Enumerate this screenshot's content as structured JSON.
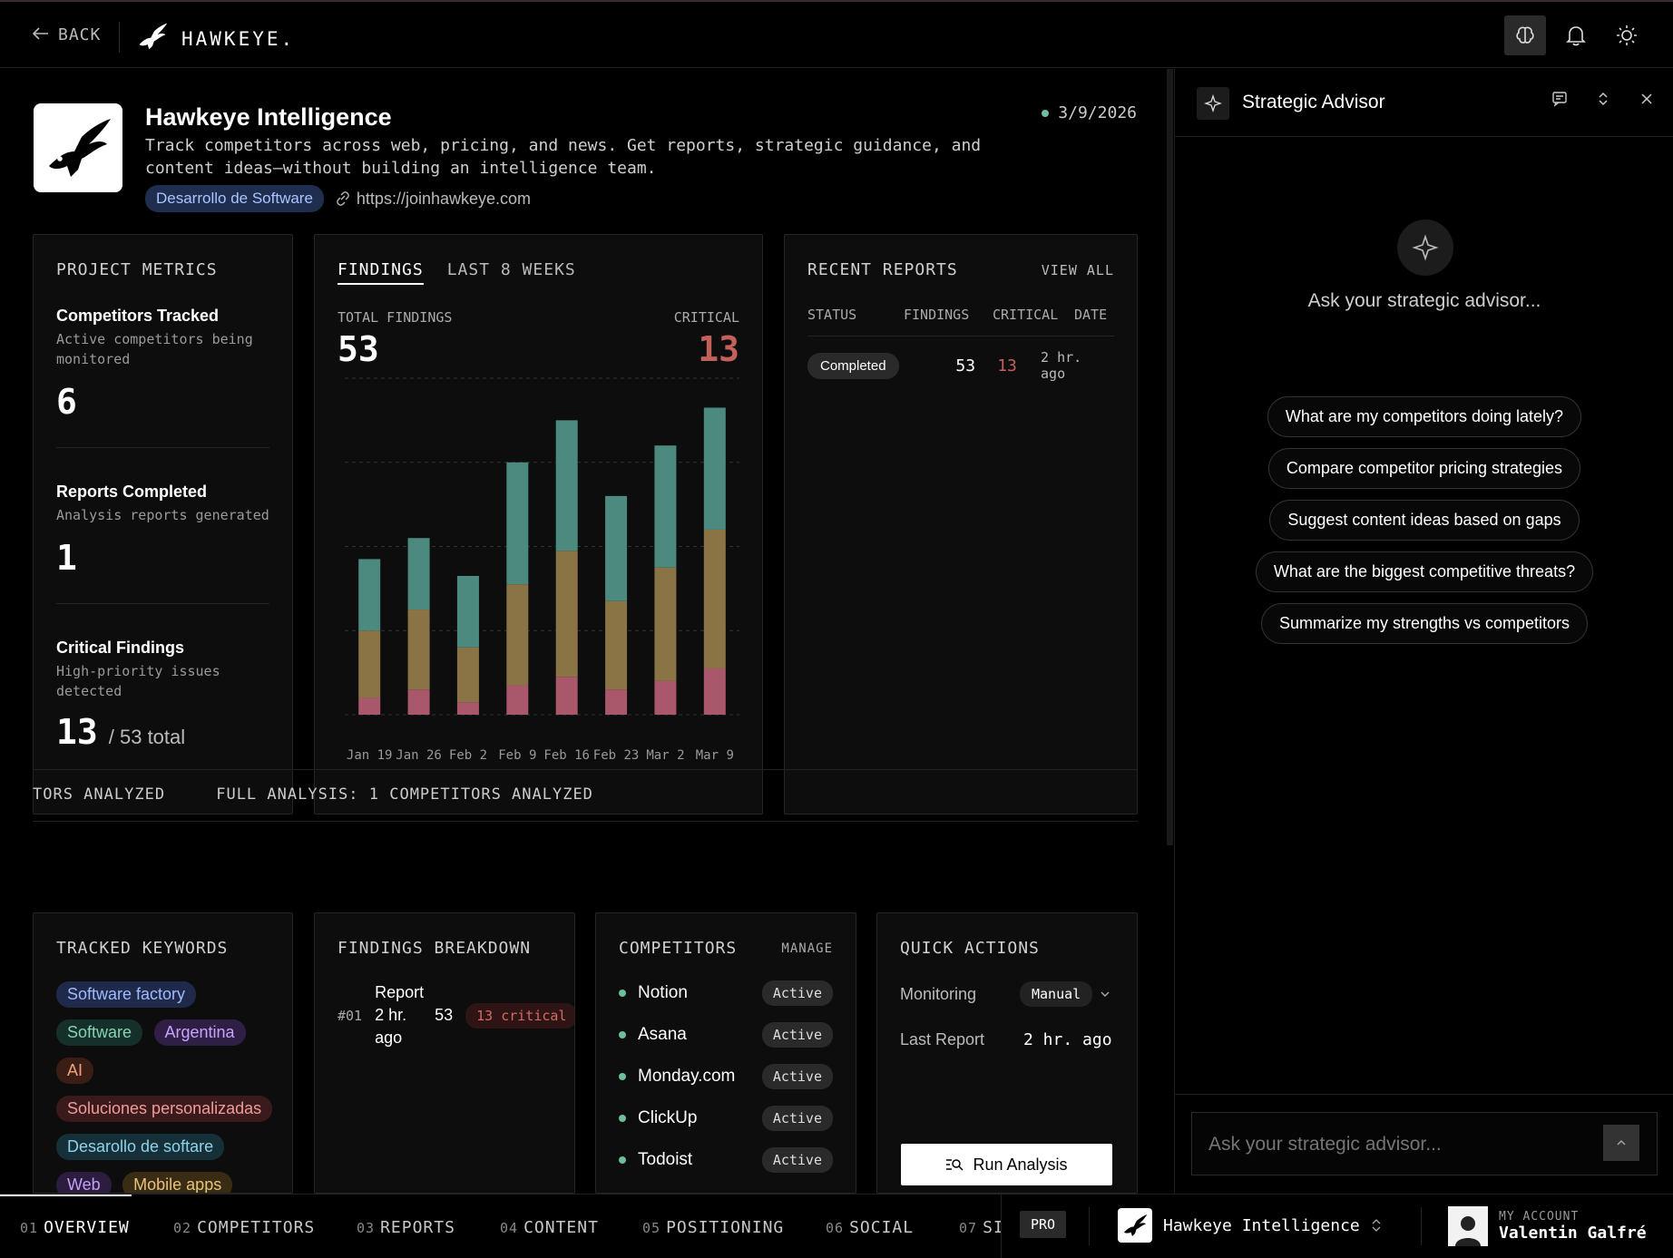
{
  "topbar": {
    "back_label": "BACK",
    "brand": "HAWKEYE."
  },
  "project": {
    "title": "Hawkeye Intelligence",
    "description": "Track competitors across web, pricing, and news. Get reports, strategic guidance, and content ideas—without building an intelligence team.",
    "date": "3/9/2026",
    "category": "Desarrollo de Software",
    "url": "https://joinhawkeye.com"
  },
  "metrics": {
    "heading": "PROJECT METRICS",
    "items": [
      {
        "name": "Competitors Tracked",
        "sub": "Active competitors being monitored",
        "value": "6"
      },
      {
        "name": "Reports Completed",
        "sub": "Analysis reports generated",
        "value": "1"
      },
      {
        "name": "Critical Findings",
        "sub": "High-priority issues detected",
        "value": "13",
        "suffix": "/ 53 total"
      }
    ]
  },
  "findings": {
    "tab_active": "FINDINGS",
    "tab_other": "LAST 8 WEEKS",
    "total_label": "TOTAL FINDINGS",
    "total_value": "53",
    "critical_label": "CRITICAL",
    "critical_value": "13"
  },
  "chart_data": {
    "type": "bar",
    "stacked": true,
    "categories": [
      "Jan 19",
      "Jan 26",
      "Feb 2",
      "Feb 9",
      "Feb 16",
      "Feb 23",
      "Mar 2",
      "Mar 9"
    ],
    "series": [
      {
        "values": [
          2,
          3,
          1.5,
          3.5,
          4.5,
          3,
          4,
          5.5
        ],
        "color": "#a8586a"
      },
      {
        "values": [
          8,
          9.5,
          6.5,
          12,
          15,
          10.5,
          13.5,
          16.5
        ],
        "color": "#8a7445"
      },
      {
        "values": [
          8.5,
          8.5,
          8.5,
          14.5,
          15.5,
          12.5,
          14.5,
          14.5
        ],
        "color": "#4c8a80"
      }
    ],
    "ylim": [
      0,
      40
    ],
    "grid": true,
    "xlabel": "",
    "ylabel": ""
  },
  "reports": {
    "heading": "RECENT REPORTS",
    "view_all": "VIEW ALL",
    "columns": [
      "STATUS",
      "FINDINGS",
      "CRITICAL",
      "DATE"
    ],
    "rows": [
      {
        "status": "Completed",
        "findings": "53",
        "critical": "13",
        "date": "2 hr. ago"
      }
    ]
  },
  "ticker": {
    "text": "TORS ANALYZED     FULL ANALYSIS: 1 COMPETITORS ANALYZED"
  },
  "keywords": {
    "heading": "TRACKED KEYWORDS",
    "items": [
      "Software factory",
      "Software",
      "Argentina",
      "AI",
      "Soluciones personalizadas",
      "Desarollo de softare",
      "Web",
      "Mobile apps"
    ]
  },
  "breakdown": {
    "heading": "FINDINGS BREAKDOWN",
    "rows": [
      {
        "num": "#01",
        "name": "Report",
        "age": "2 hr. ago",
        "count": "53",
        "critical": "13 critical"
      }
    ]
  },
  "competitors": {
    "heading": "COMPETITORS",
    "manage": "MANAGE",
    "items": [
      {
        "name": "Notion",
        "status": "Active"
      },
      {
        "name": "Asana",
        "status": "Active"
      },
      {
        "name": "Monday.com",
        "status": "Active"
      },
      {
        "name": "ClickUp",
        "status": "Active"
      },
      {
        "name": "Todoist",
        "status": "Active"
      }
    ]
  },
  "quick_actions": {
    "heading": "QUICK ACTIONS",
    "monitoring_label": "Monitoring",
    "monitoring_value": "Manual",
    "last_report_label": "Last Report",
    "last_report_value": "2 hr. ago",
    "run_button": "Run Analysis"
  },
  "advisor": {
    "title": "Strategic Advisor",
    "prompt": "Ask your strategic advisor...",
    "suggestions": [
      "What are my competitors doing lately?",
      "Compare competitor pricing strategies",
      "Suggest content ideas based on gaps",
      "What are the biggest competitive threats?",
      "Summarize my strengths vs competitors"
    ],
    "input_placeholder": "Ask your strategic advisor..."
  },
  "bottom_nav": {
    "items": [
      {
        "num": "01",
        "label": "OVERVIEW"
      },
      {
        "num": "02",
        "label": "COMPETITORS"
      },
      {
        "num": "03",
        "label": "REPORTS"
      },
      {
        "num": "04",
        "label": "CONTENT"
      },
      {
        "num": "05",
        "label": "POSITIONING"
      },
      {
        "num": "06",
        "label": "SOCIAL"
      },
      {
        "num": "07",
        "label": "SI"
      }
    ],
    "pro_badge": "PRO",
    "project_name": "Hawkeye Intelligence",
    "account_label": "MY ACCOUNT",
    "account_name": "Valentin Galfré"
  },
  "colors": {
    "critical": "#c2615a",
    "accent_green": "#6dbf9c",
    "bar_top": "#4c8a80",
    "bar_mid": "#8a7445",
    "bar_low": "#a8586a"
  }
}
